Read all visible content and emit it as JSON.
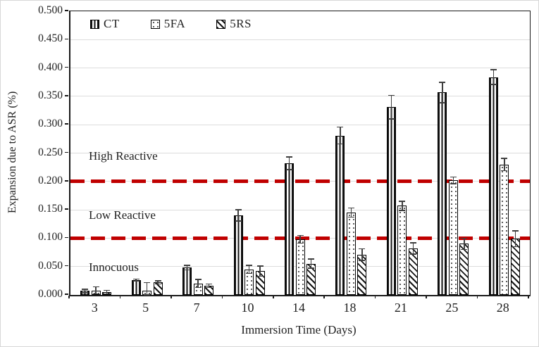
{
  "chart_data": {
    "type": "bar",
    "title": "",
    "xlabel": "Immersion Time (Days)",
    "ylabel": "Expansion due to ASR (%)",
    "categories": [
      "3",
      "5",
      "7",
      "10",
      "14",
      "18",
      "21",
      "25",
      "28"
    ],
    "series": [
      {
        "name": "CT",
        "pattern": "vertical-stripes",
        "values": [
          0.007,
          0.026,
          0.048,
          0.14,
          0.232,
          0.281,
          0.331,
          0.357,
          0.384
        ],
        "errors": [
          0.003,
          0.002,
          0.004,
          0.01,
          0.011,
          0.015,
          0.021,
          0.018,
          0.013
        ]
      },
      {
        "name": "5FA",
        "pattern": "dots",
        "values": [
          0.008,
          0.008,
          0.02,
          0.045,
          0.098,
          0.145,
          0.157,
          0.202,
          0.23
        ],
        "errors": [
          0.006,
          0.014,
          0.007,
          0.007,
          0.007,
          0.008,
          0.008,
          0.006,
          0.011
        ]
      },
      {
        "name": "5RS",
        "pattern": "diagonal-hatch",
        "values": [
          0.005,
          0.022,
          0.016,
          0.042,
          0.055,
          0.071,
          0.082,
          0.09,
          0.099
        ],
        "errors": [
          0.003,
          0.003,
          0.003,
          0.009,
          0.008,
          0.01,
          0.01,
          0.01,
          0.014
        ]
      }
    ],
    "ylim": [
      0,
      0.5
    ],
    "ytick_step": 0.05,
    "y_tick_labels": [
      "0.500",
      "0.450",
      "0.400",
      "0.350",
      "0.300",
      "0.250",
      "0.200",
      "0.150",
      "0.100",
      "0.050",
      "0.000"
    ],
    "grid": true,
    "legend_position": "top-left-inside",
    "threshold_lines": [
      {
        "value": 0.2,
        "color": "#c00000",
        "style": "dashed"
      },
      {
        "value": 0.1,
        "color": "#c00000",
        "style": "dashed"
      }
    ],
    "annotations": [
      {
        "text": "High Reactive",
        "y": 0.243
      },
      {
        "text": "Low Reactive",
        "y": 0.139
      },
      {
        "text": "Innocuous",
        "y": 0.047
      }
    ],
    "colors": {
      "threshold_line": "#c00000",
      "gridline": "#dcdcdc",
      "bar_outline": "#000000",
      "error_bar": "#3f3f3f",
      "text": "#1f1f1f"
    }
  }
}
